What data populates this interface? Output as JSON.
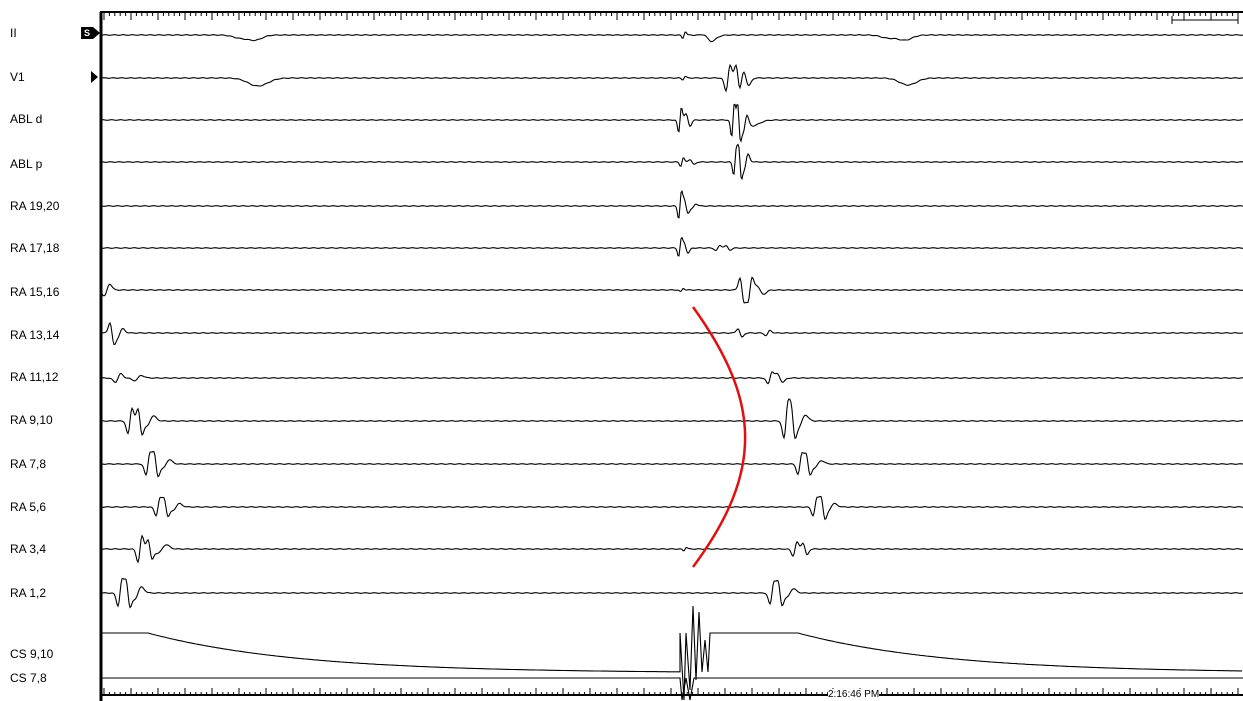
{
  "channels": [
    {
      "label": "II"
    },
    {
      "label": "V1"
    },
    {
      "label": "ABL d"
    },
    {
      "label": "ABL p"
    },
    {
      "label": "RA 19,20"
    },
    {
      "label": "RA 17,18"
    },
    {
      "label": "RA 15,16"
    },
    {
      "label": "RA 13,14"
    },
    {
      "label": "RA 11,12"
    },
    {
      "label": "RA 9,10"
    },
    {
      "label": "RA 7,8"
    },
    {
      "label": "RA 5,6"
    },
    {
      "label": "RA 3,4"
    },
    {
      "label": "RA 1,2"
    },
    {
      "label": "CS 9,10"
    },
    {
      "label": "CS 7,8"
    }
  ],
  "selected_marker": "S",
  "timestamp": "2:16:46 PM",
  "colors": {
    "trace": "#000000",
    "activation_curve": "#e01010",
    "background": "#ffffff"
  }
}
